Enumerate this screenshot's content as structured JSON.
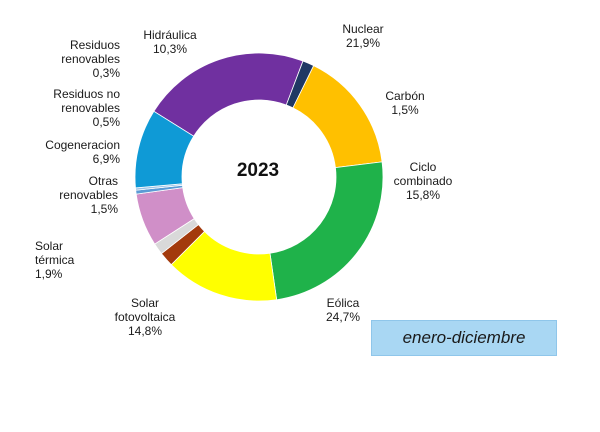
{
  "chart_data": {
    "type": "pie",
    "title": "2023",
    "period": "enero-diciembre",
    "slices": [
      {
        "label_lines": [
          "Nuclear"
        ],
        "value_text": "21,9%",
        "value": 21.9,
        "color": "#7030a0"
      },
      {
        "label_lines": [
          "Carbón"
        ],
        "value_text": "1,5%",
        "value": 1.5,
        "color": "#1f3864"
      },
      {
        "label_lines": [
          "Ciclo",
          "combinado"
        ],
        "value_text": "15,8%",
        "value": 15.8,
        "color": "#ffc000"
      },
      {
        "label_lines": [
          "Eólica"
        ],
        "value_text": "24,7%",
        "value": 24.7,
        "color": "#1fb24a"
      },
      {
        "label_lines": [
          "Solar",
          "fotovoltaica"
        ],
        "value_text": "14,8%",
        "value": 14.8,
        "color": "#ffff00"
      },
      {
        "label_lines": [
          "Solar",
          "térmica"
        ],
        "value_text": "1,9%",
        "value": 1.9,
        "color": "#a33a0c"
      },
      {
        "label_lines": [
          "Otras",
          "renovables"
        ],
        "value_text": "1,5%",
        "value": 1.5,
        "color": "#d9d9d9"
      },
      {
        "label_lines": [
          "Cogeneracion"
        ],
        "value_text": "6,9%",
        "value": 6.9,
        "color": "#d08fc8"
      },
      {
        "label_lines": [
          "Residuos no",
          "renovables"
        ],
        "value_text": "0,5%",
        "value": 0.5,
        "color": "#5b9bd5"
      },
      {
        "label_lines": [
          "Residuos",
          "renovables"
        ],
        "value_text": "0,3%",
        "value": 0.3,
        "color": "#9dc3e6"
      },
      {
        "label_lines": [
          "Hidráulica"
        ],
        "value_text": "10,3%",
        "value": 10.3,
        "color": "#0f9ad6"
      }
    ]
  }
}
